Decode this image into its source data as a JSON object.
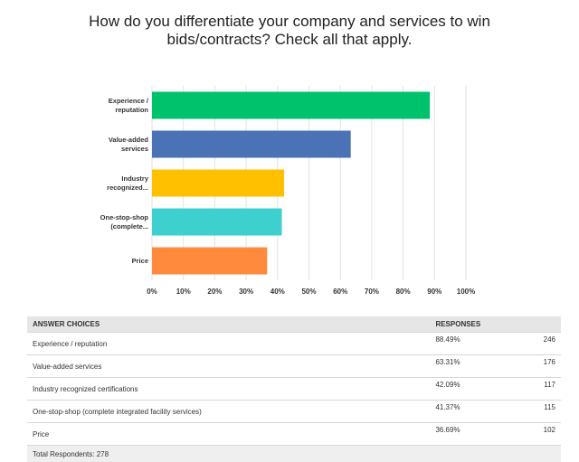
{
  "chart_data": {
    "type": "barh",
    "title": "How do you differentiate your company and services to win bids/contracts? Check all that apply.",
    "categories": [
      "Experience /\nreputation",
      "Value-added\nservices",
      "Industry\nrecognized...",
      "One-stop-shop\n(complete...",
      "Price"
    ],
    "values": [
      88.49,
      63.31,
      42.09,
      41.37,
      36.69
    ],
    "colors": [
      "#00c26c",
      "#4a72b5",
      "#ffc000",
      "#3ecfcf",
      "#ff8a3d"
    ],
    "xlim": [
      0,
      100
    ],
    "xticks": [
      {
        "value": 0,
        "label": "0%"
      },
      {
        "value": 10,
        "label": "10%"
      },
      {
        "value": 20,
        "label": "20%"
      },
      {
        "value": 30,
        "label": "30%"
      },
      {
        "value": 40,
        "label": "40%"
      },
      {
        "value": 50,
        "label": "50%"
      },
      {
        "value": 60,
        "label": "60%"
      },
      {
        "value": 70,
        "label": "70%"
      },
      {
        "value": 80,
        "label": "80%"
      },
      {
        "value": 90,
        "label": "90%"
      },
      {
        "value": 100,
        "label": "100%"
      }
    ],
    "grid": true
  },
  "table": {
    "headers": [
      "ANSWER CHOICES",
      "RESPONSES"
    ],
    "rows": [
      [
        "Experience / reputation",
        "88.49%",
        "246"
      ],
      [
        "Value-added services",
        "63.31%",
        "176"
      ],
      [
        "Industry recognized certifications",
        "42.09%",
        "117"
      ],
      [
        "One-stop-shop (complete integrated facility services)",
        "41.37%",
        "115"
      ],
      [
        "Price",
        "36.69%",
        "102"
      ]
    ],
    "footer": "Total Respondents: 278"
  }
}
